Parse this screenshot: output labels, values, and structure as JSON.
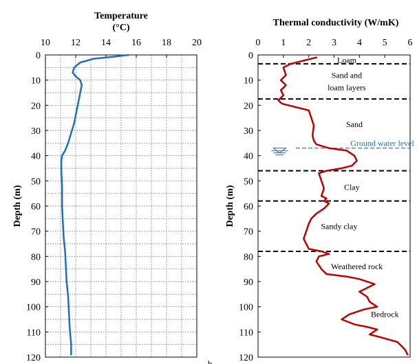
{
  "chart_data": [
    {
      "type": "line",
      "title": "Temperature (°C)",
      "title_lines": [
        "Temperature",
        "(°C)"
      ],
      "ylabel": "Depth (m)",
      "xlim": [
        10,
        20
      ],
      "ylim": [
        0,
        120
      ],
      "y_inverted": true,
      "x_ticks": [
        10,
        12,
        14,
        16,
        18,
        20
      ],
      "y_ticks": [
        0,
        10,
        20,
        30,
        40,
        50,
        60,
        70,
        80,
        90,
        100,
        110,
        120
      ],
      "x_minor_step": 1,
      "y_minor_step": 5,
      "grid": true,
      "color": "#1f6fb8",
      "panel_label": "",
      "series": [
        {
          "x": [
            15.5,
            14.5,
            13.2,
            12.3,
            11.9,
            11.8,
            12.0,
            12.3,
            12.4,
            12.3,
            12.2,
            12.1,
            12.0,
            11.9,
            11.7,
            11.5,
            11.3,
            11.1,
            11.05,
            11.05,
            11.1,
            11.1,
            11.15,
            11.2,
            11.3,
            11.35,
            11.4,
            11.5,
            11.55,
            11.6,
            11.7,
            11.7
          ],
          "y": [
            0,
            0.7,
            1.5,
            3,
            5,
            7,
            8.5,
            10,
            12,
            15,
            18,
            21,
            24,
            27,
            31,
            35,
            38,
            40,
            42,
            46,
            52,
            60,
            66,
            72,
            78,
            84,
            90,
            96,
            102,
            108,
            115,
            119
          ]
        }
      ]
    },
    {
      "type": "line",
      "title": "Thermal conductivity (W/mK)",
      "ylabel": "Depth (m)",
      "xlim": [
        0,
        6
      ],
      "ylim": [
        0,
        120
      ],
      "y_inverted": true,
      "x_ticks": [
        0,
        1,
        2,
        3,
        4,
        5,
        6
      ],
      "y_ticks": [
        0,
        10,
        20,
        30,
        40,
        50,
        60,
        70,
        80,
        90,
        100,
        110,
        120
      ],
      "grid": false,
      "color": "#c00000",
      "panel_label": "b.",
      "series": [
        {
          "x": [
            2.3,
            1.9,
            1.3,
            1.0,
            1.1,
            0.9,
            1.1,
            0.9,
            1.0,
            0.8,
            0.9,
            1.0,
            1.2,
            1.6,
            2.0,
            2.1,
            2.2,
            2.15,
            2.2,
            2.3,
            2.8,
            3.5,
            3.8,
            3.9,
            3.8,
            3.7,
            3.3,
            2.7,
            2.4,
            2.5,
            2.6,
            2.5,
            2.7,
            2.6,
            2.8,
            2.6,
            2.3,
            2.1,
            2.0,
            1.9,
            1.8,
            1.9,
            2.0,
            2.5,
            2.8,
            2.4,
            2.3,
            2.5,
            2.7,
            3.5,
            4.0,
            4.6,
            4.0,
            4.3,
            4.4,
            4.7,
            4.2,
            3.6,
            3.3,
            3.8,
            4.3,
            4.7,
            4.4,
            4.8,
            5.5,
            5.8,
            5.9
          ],
          "y": [
            1,
            2,
            3.5,
            5,
            8,
            10,
            12,
            14,
            16,
            18,
            19,
            19.5,
            20,
            21,
            22,
            25,
            28,
            32,
            34,
            35.5,
            37,
            38,
            40,
            42,
            43,
            44,
            45,
            46,
            47,
            50,
            53,
            56,
            57,
            58,
            59,
            61,
            63,
            65,
            67,
            70,
            73,
            75,
            77,
            78,
            79,
            80,
            82,
            85,
            87,
            88,
            89,
            91,
            94,
            96,
            98,
            100,
            101,
            103,
            105,
            107,
            108,
            109,
            111,
            112,
            114,
            117,
            119
          ]
        }
      ],
      "boundaries": [
        3.5,
        17.5,
        46,
        58,
        78
      ],
      "layers": [
        {
          "label": "Loam",
          "x": 3.5,
          "y": 2
        },
        {
          "label": "Sand and",
          "x": 3.5,
          "y": 8
        },
        {
          "label": "loam layers",
          "x": 3.5,
          "y": 13
        },
        {
          "label": "Sand",
          "x": 3.8,
          "y": 27.5
        },
        {
          "label": "Clay",
          "x": 3.7,
          "y": 52.5
        },
        {
          "label": "Sandy clay",
          "x": 3.2,
          "y": 68
        },
        {
          "label": "Weathered rock",
          "x": 3.9,
          "y": 84
        },
        {
          "label": "Bedrock",
          "x": 5.0,
          "y": 103
        }
      ],
      "ground_water": {
        "label": "Ground water level",
        "depth": 37,
        "color": "#1f6fb8",
        "label_x": 4.9,
        "label_y": 35
      }
    }
  ]
}
